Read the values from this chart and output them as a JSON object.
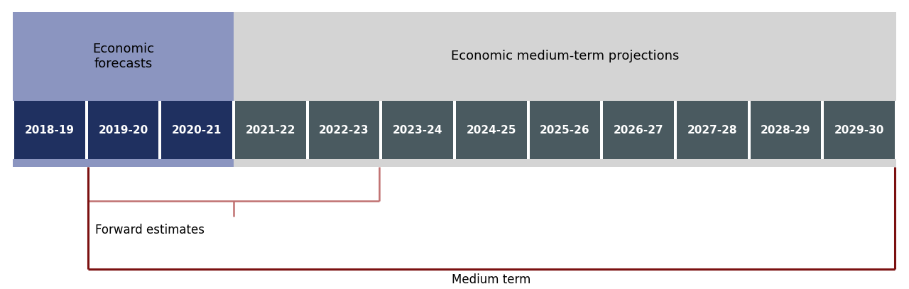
{
  "fig_width": 12.8,
  "fig_height": 4.07,
  "background_color": "#ffffff",
  "forecast_years": [
    "2018-19",
    "2019-20",
    "2020-21"
  ],
  "medium_years": [
    "2021-22",
    "2022-23",
    "2023-24",
    "2024-25",
    "2025-26",
    "2026-27",
    "2027-28",
    "2028-29",
    "2029-30"
  ],
  "forecast_box_color": "#8b95c0",
  "medium_box_color": "#d4d4d4",
  "forecast_bar_color": "#1f3060",
  "medium_bar_color": "#4a5a60",
  "bar_text_color": "#ffffff",
  "forecast_label": "Economic\nforecasts",
  "medium_label": "Economic medium-term projections",
  "forward_estimates_label": "Forward estimates",
  "medium_term_label": "Medium term",
  "bracket_color_forward": "#c07070",
  "bracket_color_medium": "#7b1010",
  "label_color": "#000000",
  "bar_fontsize": 11,
  "header_fontsize": 13
}
